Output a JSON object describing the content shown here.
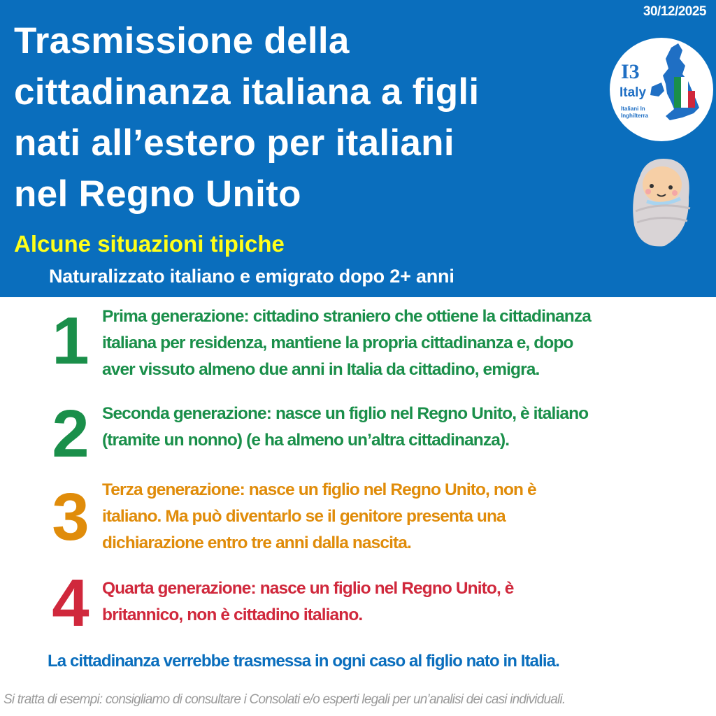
{
  "header": {
    "date": "30/12/2025",
    "title_lines": [
      "Trasmissione della",
      "cittadinanza italiana a figli",
      "nati all’estero per italiani",
      "nel Regno Unito"
    ],
    "subtitle": "Alcune situazioni tipiche",
    "scenario": "Naturalizzato italiano e emigrato dopo 2+ anni",
    "logo": {
      "mark": "I3",
      "name": "Italy",
      "tagline_lines": [
        "Italiani In",
        "Inghilterra"
      ]
    }
  },
  "items": [
    {
      "number": "1",
      "color": "#1a8f4a",
      "lines": [
        "Prima generazione: cittadino straniero che ottiene la cittadinanza",
        "italiana per residenza, mantiene la propria cittadinanza e, dopo",
        "aver vissuto almeno due anni in Italia da cittadino, emigra."
      ]
    },
    {
      "number": "2",
      "color": "#1a8f4a",
      "lines": [
        "Seconda generazione: nasce un figlio nel Regno Unito, è italiano",
        "(tramite un nonno) (e ha almeno un’altra cittadinanza)."
      ]
    },
    {
      "number": "3",
      "color": "#e08c0a",
      "lines": [
        "Terza generazione: nasce un figlio nel Regno Unito, non è",
        "italiano. Ma può diventarlo se il genitore presenta una",
        "dichiarazione entro tre anni dalla nascita."
      ]
    },
    {
      "number": "4",
      "color": "#d0283c",
      "lines": [
        "Quarta generazione: nasce un figlio nel Regno Unito, è",
        "britannico, non è cittadino italiano."
      ]
    }
  ],
  "note": "La cittadinanza verrebbe trasmessa in ogni caso al figlio nato in Italia.",
  "disclaimer": "Si tratta di esempi: consigliamo di consultare i Consolati e/o esperti legali per un’analisi dei casi individuali.",
  "colors": {
    "brand_blue": "#0a6ebd",
    "subtitle_yellow": "#ffff1a"
  }
}
